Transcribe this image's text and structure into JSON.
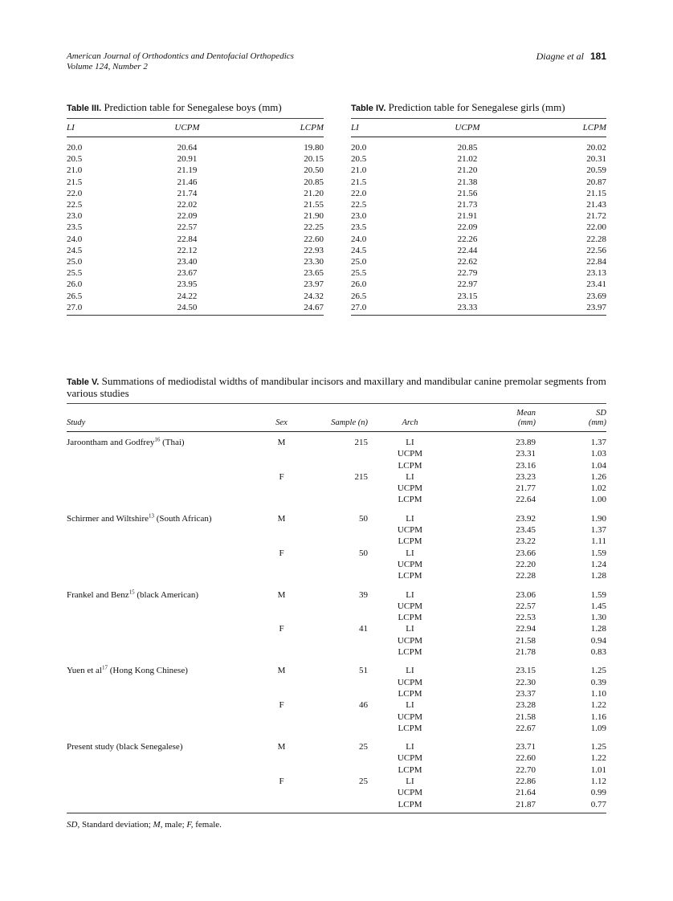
{
  "header": {
    "journal": "American Journal of Orthodontics and Dentofacial Orthopedics",
    "volume": "Volume 124, Number 2",
    "authors": "Diagne et al",
    "page": "181"
  },
  "table3": {
    "label": "Table III.",
    "title": "Prediction table for Senegalese boys (mm)",
    "columns": [
      "LI",
      "UCPM",
      "LCPM"
    ],
    "rows": [
      [
        "20.0",
        "20.64",
        "19.80"
      ],
      [
        "20.5",
        "20.91",
        "20.15"
      ],
      [
        "21.0",
        "21.19",
        "20.50"
      ],
      [
        "21.5",
        "21.46",
        "20.85"
      ],
      [
        "22.0",
        "21.74",
        "21.20"
      ],
      [
        "22.5",
        "22.02",
        "21.55"
      ],
      [
        "23.0",
        "22.09",
        "21.90"
      ],
      [
        "23.5",
        "22.57",
        "22.25"
      ],
      [
        "24.0",
        "22.84",
        "22.60"
      ],
      [
        "24.5",
        "22.12",
        "22.93"
      ],
      [
        "25.0",
        "23.40",
        "23.30"
      ],
      [
        "25.5",
        "23.67",
        "23.65"
      ],
      [
        "26.0",
        "23.95",
        "23.97"
      ],
      [
        "26.5",
        "24.22",
        "24.32"
      ],
      [
        "27.0",
        "24.50",
        "24.67"
      ]
    ]
  },
  "table4": {
    "label": "Table IV.",
    "title": "Prediction table for Senegalese girls (mm)",
    "columns": [
      "LI",
      "UCPM",
      "LCPM"
    ],
    "rows": [
      [
        "20.0",
        "20.85",
        "20.02"
      ],
      [
        "20.5",
        "21.02",
        "20.31"
      ],
      [
        "21.0",
        "21.20",
        "20.59"
      ],
      [
        "21.5",
        "21.38",
        "20.87"
      ],
      [
        "22.0",
        "21.56",
        "21.15"
      ],
      [
        "22.5",
        "21.73",
        "21.43"
      ],
      [
        "23.0",
        "21.91",
        "21.72"
      ],
      [
        "23.5",
        "22.09",
        "22.00"
      ],
      [
        "24.0",
        "22.26",
        "22.28"
      ],
      [
        "24.5",
        "22.44",
        "22.56"
      ],
      [
        "25.0",
        "22.62",
        "22.84"
      ],
      [
        "25.5",
        "22.79",
        "23.13"
      ],
      [
        "26.0",
        "22.97",
        "23.41"
      ],
      [
        "26.5",
        "23.15",
        "23.69"
      ],
      [
        "27.0",
        "23.33",
        "23.97"
      ]
    ]
  },
  "table5": {
    "label": "Table V.",
    "title": "Summations of mediodistal widths of mandibular incisors and maxillary and mandibular canine premolar segments from various studies",
    "columns": {
      "study": "Study",
      "sex": "Sex",
      "sample": "Sample (n)",
      "arch": "Arch",
      "mean": "Mean",
      "mean_unit": "(mm)",
      "sd": "SD",
      "sd_unit": "(mm)"
    },
    "studies": [
      {
        "name": "Jaroontham and Godfrey",
        "ref": "16",
        "suffix": " (Thai)",
        "groups": [
          {
            "sex": "M",
            "n": "215",
            "rows": [
              [
                "LI",
                "23.89",
                "1.37"
              ],
              [
                "UCPM",
                "23.31",
                "1.03"
              ],
              [
                "LCPM",
                "23.16",
                "1.04"
              ]
            ]
          },
          {
            "sex": "F",
            "n": "215",
            "rows": [
              [
                "LI",
                "23.23",
                "1.26"
              ],
              [
                "UCPM",
                "21.77",
                "1.02"
              ],
              [
                "LCPM",
                "22.64",
                "1.00"
              ]
            ]
          }
        ]
      },
      {
        "name": "Schirmer and Wiltshire",
        "ref": "13",
        "suffix": " (South African)",
        "groups": [
          {
            "sex": "M",
            "n": "50",
            "rows": [
              [
                "LI",
                "23.92",
                "1.90"
              ],
              [
                "UCPM",
                "23.45",
                "1.37"
              ],
              [
                "LCPM",
                "23.22",
                "1.11"
              ]
            ]
          },
          {
            "sex": "F",
            "n": "50",
            "rows": [
              [
                "LI",
                "23.66",
                "1.59"
              ],
              [
                "UCPM",
                "22.20",
                "1.24"
              ],
              [
                "LCPM",
                "22.28",
                "1.28"
              ]
            ]
          }
        ]
      },
      {
        "name": "Frankel and Benz",
        "ref": "15",
        "suffix": " (black American)",
        "groups": [
          {
            "sex": "M",
            "n": "39",
            "rows": [
              [
                "LI",
                "23.06",
                "1.59"
              ],
              [
                "UCPM",
                "22.57",
                "1.45"
              ],
              [
                "LCPM",
                "22.53",
                "1.30"
              ]
            ]
          },
          {
            "sex": "F",
            "n": "41",
            "rows": [
              [
                "LI",
                "22.94",
                "1.28"
              ],
              [
                "UCPM",
                "21.58",
                "0.94"
              ],
              [
                "LCPM",
                "21.78",
                "0.83"
              ]
            ]
          }
        ]
      },
      {
        "name": "Yuen et al",
        "ref": "17",
        "suffix": " (Hong Kong Chinese)",
        "groups": [
          {
            "sex": "M",
            "n": "51",
            "rows": [
              [
                "LI",
                "23.15",
                "1.25"
              ],
              [
                "UCPM",
                "22.30",
                "0.39"
              ],
              [
                "LCPM",
                "23.37",
                "1.10"
              ]
            ]
          },
          {
            "sex": "F",
            "n": "46",
            "rows": [
              [
                "LI",
                "23.28",
                "1.22"
              ],
              [
                "UCPM",
                "21.58",
                "1.16"
              ],
              [
                "LCPM",
                "22.67",
                "1.09"
              ]
            ]
          }
        ]
      },
      {
        "name": "Present study (black Senegalese)",
        "ref": "",
        "suffix": "",
        "groups": [
          {
            "sex": "M",
            "n": "25",
            "rows": [
              [
                "LI",
                "23.71",
                "1.25"
              ],
              [
                "UCPM",
                "22.60",
                "1.22"
              ],
              [
                "LCPM",
                "22.70",
                "1.01"
              ]
            ]
          },
          {
            "sex": "F",
            "n": "25",
            "rows": [
              [
                "LI",
                "22.86",
                "1.12"
              ],
              [
                "UCPM",
                "21.64",
                "0.99"
              ],
              [
                "LCPM",
                "21.87",
                "0.77"
              ]
            ]
          }
        ]
      }
    ],
    "footnote": {
      "sd_abbr": "SD,",
      "sd_text": " Standard deviation; ",
      "m_abbr": "M,",
      "m_text": " male; ",
      "f_abbr": "F,",
      "f_text": " female."
    }
  }
}
